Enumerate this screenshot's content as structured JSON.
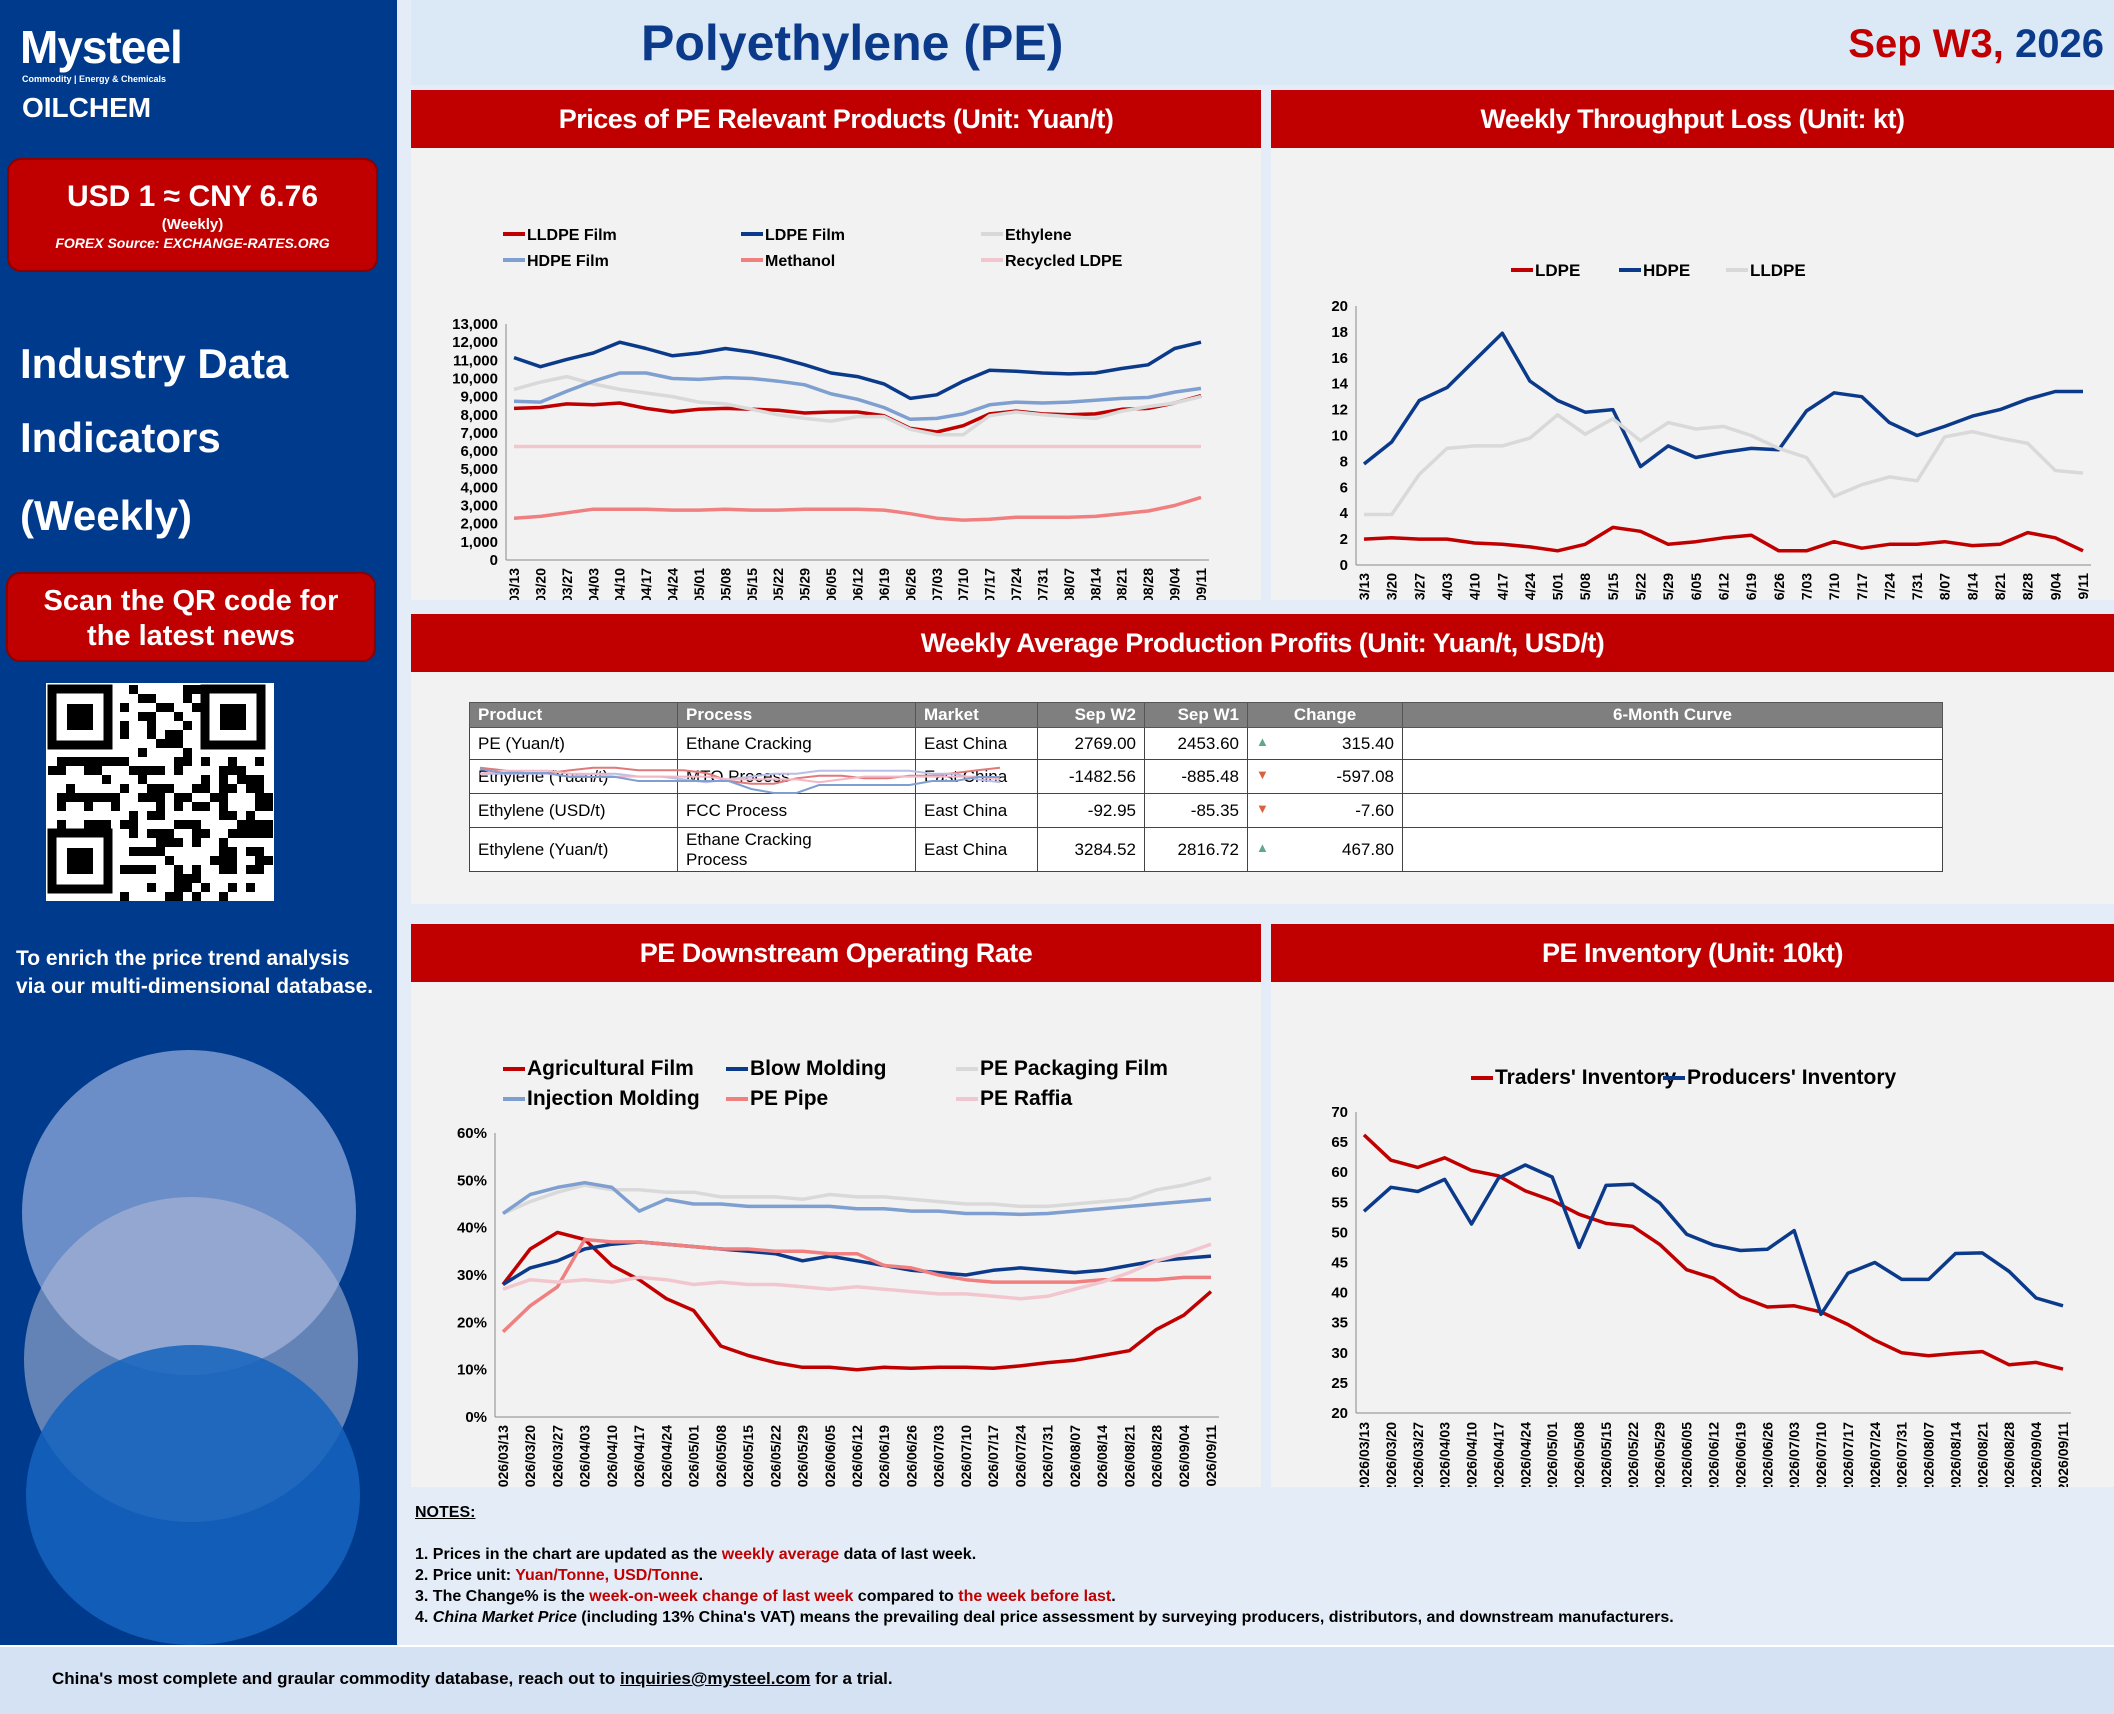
{
  "brand": {
    "logo1": "Mysteel",
    "logo1_sub": "Commodity | Energy & Chemicals",
    "logo2": "OILCHEM"
  },
  "fx": {
    "rate": "USD 1 ≈ CNY 6.76",
    "period": "(Weekly)",
    "source": "FOREX Source: EXCHANGE-RATES.ORG"
  },
  "sidebar": {
    "indicators": [
      "Industry Data",
      "Indicators",
      "(Weekly)"
    ],
    "qr_button": [
      "Scan the QR code for",
      "the latest news"
    ],
    "enrich": [
      "To enrich the price trend analysis",
      "via our multi-dimensional database."
    ]
  },
  "header": {
    "title": "Polyethylene (PE)",
    "date_week": "Sep W3,",
    "date_year": "2026"
  },
  "dates": [
    "2026/03/13",
    "2026/03/20",
    "2026/03/27",
    "2026/04/03",
    "2026/04/10",
    "2026/04/17",
    "2026/04/24",
    "2026/05/01",
    "2026/05/08",
    "2026/05/15",
    "2026/05/22",
    "2026/05/29",
    "2026/06/05",
    "2026/06/12",
    "2026/06/19",
    "2026/06/26",
    "2026/07/03",
    "2026/07/10",
    "2026/07/17",
    "2026/07/24",
    "2026/07/31",
    "2026/08/07",
    "2026/08/14",
    "2026/08/21",
    "2026/08/28",
    "2026/09/04",
    "2026/09/11"
  ],
  "chart_data": [
    {
      "id": "prices",
      "title": "Prices of  PE Relevant Products (Unit: Yuan/t)",
      "type": "line",
      "ylim": [
        0,
        13000
      ],
      "yticks": [
        "0",
        "1,000",
        "2,000",
        "3,000",
        "4,000",
        "5,000",
        "6,000",
        "7,000",
        "8,000",
        "9,000",
        "10,000",
        "11,000",
        "12,000",
        "13,000"
      ],
      "series": [
        {
          "name": "LLDPE Film",
          "color": "#c00000",
          "values": [
            8350,
            8400,
            8600,
            8550,
            8650,
            8350,
            8150,
            8300,
            8350,
            8300,
            8250,
            8100,
            8150,
            8150,
            7950,
            7250,
            7050,
            7400,
            8050,
            8200,
            8050,
            8000,
            8050,
            8300,
            8350,
            8650,
            9050
          ]
        },
        {
          "name": "LDPE Film",
          "color": "#0b3a8a",
          "values": [
            11150,
            10650,
            11050,
            11400,
            12000,
            11650,
            11250,
            11400,
            11650,
            11450,
            11150,
            10750,
            10300,
            10100,
            9700,
            8900,
            9100,
            9850,
            10450,
            10400,
            10300,
            10250,
            10300,
            10550,
            10750,
            11650,
            12000
          ]
        },
        {
          "name": "Ethylene",
          "color": "#d9d9d9",
          "values": [
            9400,
            9800,
            10100,
            9700,
            9400,
            9200,
            9000,
            8700,
            8600,
            8300,
            8000,
            7800,
            7650,
            7900,
            7900,
            7200,
            6900,
            6900,
            7950,
            8150,
            8000,
            7900,
            7800,
            8200,
            8450,
            8650,
            9000
          ]
        },
        {
          "name": "HDPE Film",
          "color": "#7f9fd0",
          "values": [
            8750,
            8700,
            9300,
            9850,
            10300,
            10300,
            10000,
            9950,
            10050,
            10000,
            9850,
            9650,
            9150,
            8850,
            8400,
            7750,
            7800,
            8050,
            8550,
            8700,
            8650,
            8700,
            8800,
            8900,
            8950,
            9250,
            9450
          ]
        },
        {
          "name": "Methanol",
          "color": "#f08080",
          "values": [
            2300,
            2400,
            2600,
            2800,
            2800,
            2800,
            2750,
            2750,
            2800,
            2750,
            2750,
            2800,
            2800,
            2800,
            2750,
            2550,
            2300,
            2200,
            2250,
            2350,
            2350,
            2350,
            2400,
            2550,
            2700,
            3000,
            3450
          ]
        },
        {
          "name": "Recycled LDPE",
          "color": "#f2c6ce",
          "values": [
            6250,
            6250,
            6250,
            6250,
            6250,
            6250,
            6250,
            6250,
            6250,
            6250,
            6250,
            6250,
            6250,
            6250,
            6250,
            6250,
            6250,
            6250,
            6250,
            6250,
            6250,
            6250,
            6250,
            6250,
            6250,
            6250,
            6250
          ]
        }
      ]
    },
    {
      "id": "throughput",
      "title": "Weekly Throughput Loss (Unit: kt)",
      "type": "line",
      "ylim": [
        0,
        20
      ],
      "yticks": [
        "0",
        "2",
        "4",
        "6",
        "8",
        "10",
        "12",
        "14",
        "16",
        "18",
        "20"
      ],
      "series": [
        {
          "name": "LDPE",
          "color": "#c00000",
          "values": [
            2.0,
            2.1,
            2.0,
            2.0,
            1.7,
            1.6,
            1.4,
            1.1,
            1.6,
            2.9,
            2.6,
            1.6,
            1.8,
            2.1,
            2.3,
            1.1,
            1.1,
            1.8,
            1.3,
            1.6,
            1.6,
            1.8,
            1.5,
            1.6,
            2.5,
            2.1,
            1.1
          ]
        },
        {
          "name": "HDPE",
          "color": "#0b3a8a",
          "values": [
            7.8,
            9.5,
            12.7,
            13.7,
            15.8,
            17.9,
            14.2,
            12.7,
            11.8,
            12.0,
            7.6,
            9.2,
            8.3,
            8.7,
            9.0,
            8.9,
            11.9,
            13.3,
            13.0,
            11.0,
            10.0,
            10.7,
            11.5,
            12.0,
            12.8,
            13.4,
            13.4
          ]
        },
        {
          "name": "LLDPE",
          "color": "#d9d9d9",
          "values": [
            3.9,
            3.9,
            7.0,
            9.0,
            9.2,
            9.2,
            9.8,
            11.6,
            10.1,
            11.3,
            9.6,
            11.0,
            10.5,
            10.7,
            10.0,
            9.0,
            8.3,
            5.3,
            6.2,
            6.8,
            6.5,
            9.9,
            10.3,
            9.8,
            9.4,
            7.3,
            7.1
          ]
        }
      ]
    },
    {
      "id": "operating_rate",
      "title": "PE Downstream Operating Rate",
      "type": "line",
      "ylim": [
        0,
        60
      ],
      "yticks": [
        "0%",
        "10%",
        "20%",
        "30%",
        "40%",
        "50%",
        "60%"
      ],
      "series": [
        {
          "name": "Agricultural Film",
          "color": "#c00000",
          "values": [
            28,
            35.5,
            39,
            37.5,
            32,
            29,
            25,
            22.5,
            15,
            13,
            11.5,
            10.5,
            10.5,
            10,
            10.5,
            10.3,
            10.5,
            10.5,
            10.3,
            10.8,
            11.5,
            12,
            13,
            14,
            18.5,
            21.5,
            26.5
          ]
        },
        {
          "name": "Blow Molding",
          "color": "#0b3a8a",
          "values": [
            28,
            31.5,
            33,
            35.5,
            36.5,
            37,
            36.5,
            36,
            35.5,
            35,
            34.5,
            33,
            34,
            33,
            32,
            31,
            30.5,
            30,
            31,
            31.5,
            31,
            30.5,
            31,
            32,
            33,
            33.5,
            34
          ]
        },
        {
          "name": "PE Packaging Film",
          "color": "#d9d9d9",
          "values": [
            43,
            45.5,
            47.5,
            49,
            48,
            48,
            47.5,
            47.5,
            46.5,
            46.5,
            46.5,
            46,
            47,
            46.5,
            46.5,
            46,
            45.5,
            45,
            45,
            44.5,
            44.5,
            45,
            45.5,
            46,
            48,
            49,
            50.5
          ]
        },
        {
          "name": "Injection Molding",
          "color": "#7f9fd0",
          "values": [
            43,
            47,
            48.5,
            49.5,
            48.5,
            43.5,
            46,
            45,
            45,
            44.5,
            44.5,
            44.5,
            44.5,
            44,
            44,
            43.5,
            43.5,
            43,
            43,
            42.8,
            43,
            43.5,
            44,
            44.5,
            45,
            45.5,
            46
          ]
        },
        {
          "name": "PE Pipe",
          "color": "#f08080",
          "values": [
            18,
            23.5,
            27.5,
            37.5,
            37,
            37,
            36.5,
            36,
            35.5,
            35.5,
            35,
            35,
            34.5,
            34.5,
            32,
            31.5,
            30,
            29,
            28.5,
            28.5,
            28.5,
            28.5,
            29,
            29,
            29,
            29.5,
            29.5
          ]
        },
        {
          "name": "PE Raffia",
          "color": "#f2c6ce",
          "values": [
            27,
            29,
            28.5,
            29,
            28.5,
            29.5,
            29,
            28,
            28.5,
            28,
            28,
            27.5,
            27,
            27.5,
            27,
            26.5,
            26,
            26,
            25.5,
            25,
            25.5,
            27,
            28.5,
            30.5,
            33,
            34.5,
            36.5
          ]
        }
      ]
    },
    {
      "id": "inventory",
      "title": "PE Inventory (Unit: 10kt)",
      "type": "line",
      "ylim": [
        20,
        70
      ],
      "yticks": [
        "20",
        "25",
        "30",
        "35",
        "40",
        "45",
        "50",
        "55",
        "60",
        "65",
        "70"
      ],
      "series": [
        {
          "name": "Traders' Inventory",
          "color": "#c00000",
          "values": [
            66.2,
            62,
            60.8,
            62.4,
            60.3,
            59.4,
            56.9,
            55.3,
            53,
            51.5,
            51,
            48,
            43.8,
            42.4,
            39.3,
            37.6,
            37.8,
            36.8,
            34.7,
            32.1,
            30,
            29.5,
            29.9,
            30.2,
            28,
            28.4,
            27.3
          ]
        },
        {
          "name": "Producers' Inventory",
          "color": "#0b3a8a",
          "values": [
            53.5,
            57.5,
            56.8,
            58.8,
            51.4,
            59,
            61.2,
            59.2,
            47.5,
            57.8,
            58,
            54.9,
            49.7,
            47.9,
            47,
            47.2,
            50.3,
            36.4,
            43.2,
            45,
            42.2,
            42.2,
            46.5,
            46.6,
            43.5,
            39.1,
            37.8
          ]
        }
      ]
    }
  ],
  "profits": {
    "title": "Weekly Average Production Profits (Unit: Yuan/t, USD/t)",
    "headers": [
      "Product",
      "Process",
      "Market",
      "Sep W2",
      "Sep W1",
      "Change",
      "6-Month Curve"
    ],
    "rows": [
      {
        "product": "PE (Yuan/t)",
        "process": "Ethane Cracking",
        "market": "East China",
        "w2": "2769.00",
        "w1": "2453.60",
        "change": "315.40",
        "dir": "up",
        "curve_color": "#e07a7a",
        "curve": [
          8,
          7,
          6,
          6,
          7,
          8,
          8,
          7,
          7,
          7,
          6,
          3,
          2,
          2,
          4,
          5,
          5,
          4,
          4,
          5,
          5,
          6,
          7,
          8
        ]
      },
      {
        "product": "Ethylene (Yuan/t)",
        "process": "MTO Process",
        "market": "East China",
        "w2": "-1482.56",
        "w1": "-885.48",
        "change": "-597.08",
        "dir": "down",
        "curve_color": "#b8bee6",
        "curve": [
          6,
          6,
          6,
          6,
          5,
          6,
          6,
          5,
          5,
          4,
          3,
          4,
          5,
          6,
          6,
          7,
          7,
          7,
          7,
          7,
          6,
          6,
          4,
          3
        ]
      },
      {
        "product": "Ethylene (USD/t)",
        "process": "FCC Process",
        "market": "East China",
        "w2": "-92.95",
        "w1": "-85.35",
        "change": "-7.60",
        "dir": "down",
        "curve_color": "#f2b8c6",
        "curve": [
          6,
          7,
          7,
          7,
          6,
          6,
          5,
          5,
          5,
          5,
          5,
          4,
          4,
          4,
          4,
          3,
          4,
          5,
          5,
          5,
          5,
          5,
          5,
          4
        ]
      },
      {
        "product": "Ethylene (Yuan/t)",
        "process": "Ethane Cracking\nProcess",
        "market": "East China",
        "w2": "3284.52",
        "w1": "2816.72",
        "change": "467.80",
        "dir": "up",
        "curve_color": "#7f9fd0",
        "curve": [
          8,
          7,
          7,
          7,
          6,
          6,
          6,
          5,
          5,
          5,
          5,
          5,
          3,
          2,
          2,
          4,
          4,
          4,
          4,
          4,
          5,
          5,
          6,
          6
        ]
      }
    ]
  },
  "notes": {
    "heading": "NOTES:",
    "n1a": "1. Prices in the chart are updated as the ",
    "n1b": "weekly average",
    "n1c": " data of last week.",
    "n2a": "2. Price unit: ",
    "n2b": "Yuan/Tonne, USD/Tonne",
    "n3a": "3. The Change% is the ",
    "n3b": "week-on-week change of last week",
    "n3c": " compared to ",
    "n3d": "the week before last",
    "n3e": ".",
    "n4a": "4. ",
    "n4b": "China Market Price",
    "n4c": " (including 13% China's VAT) means the prevailing deal price assessment by surveying producers, distributors, and downstream manufacturers."
  },
  "footer": {
    "text": "China's most complete and graular commodity database, reach out to ",
    "email": "inquiries@mysteel.com",
    "tail": " for a trial."
  },
  "colors": {
    "red": "#c00000",
    "navy": "#0b3a8a",
    "sidebar": "#003a8c"
  }
}
